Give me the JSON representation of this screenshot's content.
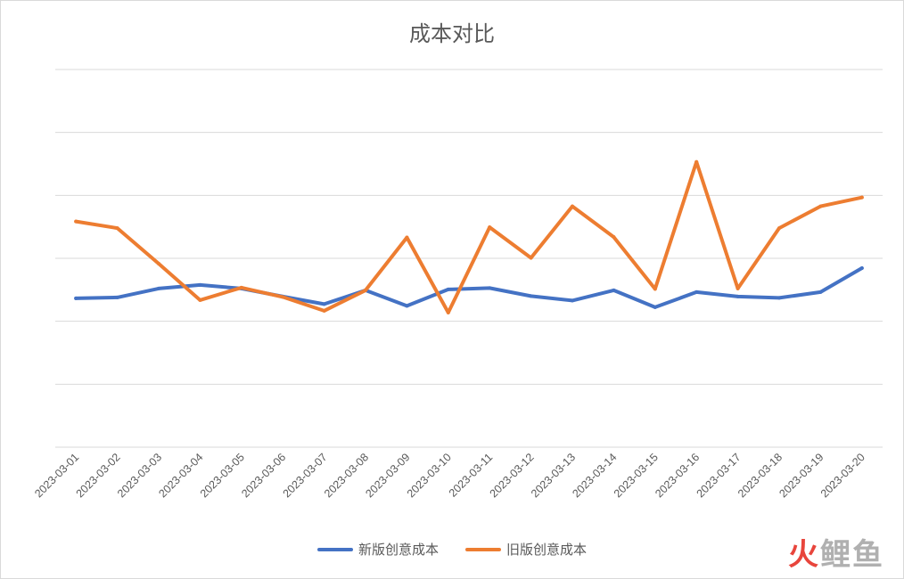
{
  "chart_data": {
    "type": "line",
    "title": "成本对比",
    "categories": [
      "2023-03-01",
      "2023-03-02",
      "2023-03-03",
      "2023-03-04",
      "2023-03-05",
      "2023-03-06",
      "2023-03-07",
      "2023-03-08",
      "2023-03-09",
      "2023-03-10",
      "2023-03-11",
      "2023-03-12",
      "2023-03-13",
      "2023-03-14",
      "2023-03-15",
      "2023-03-16",
      "2023-03-17",
      "2023-03-18",
      "2023-03-19",
      "2023-03-20"
    ],
    "series": [
      {
        "name": "新版创意成本",
        "color": "#4472c4",
        "values": [
          3.35,
          3.37,
          3.57,
          3.65,
          3.57,
          3.39,
          3.22,
          3.53,
          3.18,
          3.55,
          3.58,
          3.4,
          3.3,
          3.53,
          3.15,
          3.49,
          3.39,
          3.36,
          3.49,
          4.03
        ]
      },
      {
        "name": "旧版创意成本",
        "color": "#ed7d31",
        "values": [
          5.08,
          4.93,
          4.13,
          3.31,
          3.59,
          3.38,
          3.07,
          3.53,
          4.72,
          3.03,
          4.95,
          4.26,
          5.42,
          4.73,
          3.56,
          6.42,
          3.57,
          4.93,
          5.42,
          5.62
        ]
      }
    ],
    "ylim": [
      0,
      8.5
    ],
    "grid": true,
    "legend": "bottom",
    "xlabel": "",
    "ylabel": ""
  },
  "watermark": {
    "part1": "火",
    "part2": "鲤",
    "part3": "鱼"
  }
}
